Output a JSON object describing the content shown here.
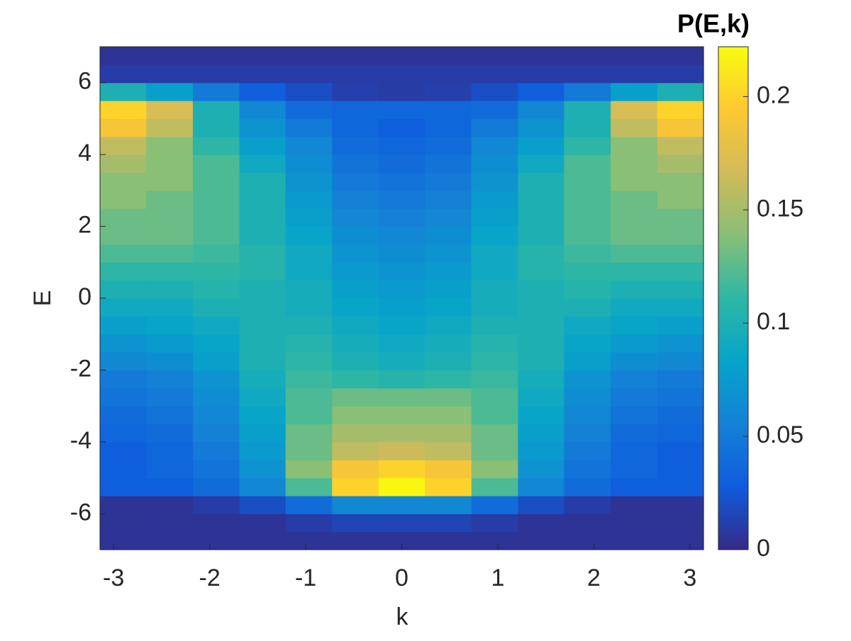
{
  "chart_data": {
    "type": "heatmap",
    "xlabel": "k",
    "ylabel": "E",
    "colorbar_title": "P(E,k)",
    "x": [
      -2.9,
      -2.42,
      -1.93,
      -1.45,
      -0.97,
      -0.48,
      0,
      0.48,
      0.97,
      1.45,
      1.93,
      2.42,
      2.9
    ],
    "y": [
      -6.75,
      -6.25,
      -5.75,
      -5.25,
      -4.75,
      -4.25,
      -3.75,
      -3.25,
      -2.75,
      -2.25,
      -1.75,
      -1.25,
      -0.75,
      -0.25,
      0.25,
      0.75,
      1.25,
      1.75,
      2.25,
      2.75,
      3.25,
      3.75,
      4.25,
      4.75,
      5.25,
      5.75,
      6.25,
      6.75
    ],
    "z": [
      [
        0.005,
        0.005,
        0.005,
        0.005,
        0.005,
        0.005,
        0.005,
        0.005,
        0.005,
        0.005,
        0.005,
        0.005,
        0.005
      ],
      [
        0.005,
        0.005,
        0.005,
        0.005,
        0.01,
        0.015,
        0.015,
        0.015,
        0.01,
        0.005,
        0.005,
        0.005,
        0.005
      ],
      [
        0.005,
        0.005,
        0.01,
        0.02,
        0.04,
        0.06,
        0.06,
        0.06,
        0.04,
        0.02,
        0.01,
        0.005,
        0.005
      ],
      [
        0.03,
        0.03,
        0.04,
        0.06,
        0.12,
        0.2,
        0.22,
        0.2,
        0.12,
        0.06,
        0.04,
        0.03,
        0.03
      ],
      [
        0.03,
        0.035,
        0.045,
        0.07,
        0.14,
        0.19,
        0.2,
        0.19,
        0.14,
        0.07,
        0.045,
        0.035,
        0.03
      ],
      [
        0.03,
        0.035,
        0.05,
        0.075,
        0.13,
        0.16,
        0.165,
        0.16,
        0.13,
        0.075,
        0.05,
        0.035,
        0.03
      ],
      [
        0.035,
        0.04,
        0.055,
        0.08,
        0.13,
        0.15,
        0.15,
        0.15,
        0.13,
        0.08,
        0.055,
        0.04,
        0.035
      ],
      [
        0.04,
        0.045,
        0.06,
        0.085,
        0.12,
        0.14,
        0.14,
        0.14,
        0.12,
        0.085,
        0.06,
        0.045,
        0.04
      ],
      [
        0.045,
        0.05,
        0.065,
        0.09,
        0.12,
        0.13,
        0.13,
        0.13,
        0.12,
        0.09,
        0.065,
        0.05,
        0.045
      ],
      [
        0.05,
        0.055,
        0.07,
        0.095,
        0.115,
        0.11,
        0.105,
        0.11,
        0.115,
        0.095,
        0.07,
        0.055,
        0.05
      ],
      [
        0.06,
        0.065,
        0.08,
        0.1,
        0.11,
        0.1,
        0.095,
        0.1,
        0.11,
        0.1,
        0.08,
        0.065,
        0.06
      ],
      [
        0.07,
        0.075,
        0.085,
        0.1,
        0.105,
        0.095,
        0.09,
        0.095,
        0.105,
        0.1,
        0.085,
        0.075,
        0.07
      ],
      [
        0.08,
        0.085,
        0.09,
        0.1,
        0.1,
        0.09,
        0.085,
        0.09,
        0.1,
        0.1,
        0.09,
        0.085,
        0.08
      ],
      [
        0.09,
        0.09,
        0.1,
        0.1,
        0.095,
        0.085,
        0.08,
        0.085,
        0.095,
        0.1,
        0.1,
        0.09,
        0.09
      ],
      [
        0.1,
        0.1,
        0.105,
        0.1,
        0.095,
        0.08,
        0.075,
        0.08,
        0.095,
        0.1,
        0.105,
        0.1,
        0.1
      ],
      [
        0.11,
        0.11,
        0.11,
        0.105,
        0.09,
        0.075,
        0.07,
        0.075,
        0.09,
        0.105,
        0.11,
        0.11,
        0.11
      ],
      [
        0.12,
        0.12,
        0.115,
        0.105,
        0.09,
        0.07,
        0.065,
        0.07,
        0.09,
        0.105,
        0.115,
        0.12,
        0.12
      ],
      [
        0.13,
        0.13,
        0.12,
        0.1,
        0.085,
        0.065,
        0.06,
        0.065,
        0.085,
        0.1,
        0.12,
        0.13,
        0.13
      ],
      [
        0.13,
        0.13,
        0.12,
        0.1,
        0.08,
        0.06,
        0.055,
        0.06,
        0.08,
        0.1,
        0.12,
        0.13,
        0.13
      ],
      [
        0.14,
        0.13,
        0.12,
        0.1,
        0.075,
        0.055,
        0.05,
        0.055,
        0.075,
        0.1,
        0.12,
        0.13,
        0.14
      ],
      [
        0.14,
        0.14,
        0.12,
        0.1,
        0.07,
        0.05,
        0.045,
        0.05,
        0.07,
        0.1,
        0.12,
        0.14,
        0.14
      ],
      [
        0.15,
        0.14,
        0.12,
        0.09,
        0.065,
        0.045,
        0.04,
        0.045,
        0.065,
        0.09,
        0.12,
        0.14,
        0.15
      ],
      [
        0.16,
        0.14,
        0.11,
        0.08,
        0.06,
        0.04,
        0.035,
        0.04,
        0.06,
        0.08,
        0.11,
        0.14,
        0.16
      ],
      [
        0.19,
        0.16,
        0.1,
        0.07,
        0.05,
        0.035,
        0.03,
        0.035,
        0.05,
        0.07,
        0.1,
        0.16,
        0.19
      ],
      [
        0.2,
        0.17,
        0.1,
        0.06,
        0.04,
        0.035,
        0.035,
        0.035,
        0.04,
        0.06,
        0.1,
        0.17,
        0.2
      ],
      [
        0.1,
        0.08,
        0.05,
        0.03,
        0.02,
        0.012,
        0.01,
        0.012,
        0.02,
        0.03,
        0.05,
        0.08,
        0.1
      ],
      [
        0.01,
        0.01,
        0.01,
        0.01,
        0.01,
        0.01,
        0.01,
        0.01,
        0.01,
        0.01,
        0.01,
        0.01,
        0.01
      ],
      [
        0.005,
        0.005,
        0.005,
        0.005,
        0.005,
        0.005,
        0.005,
        0.005,
        0.005,
        0.005,
        0.005,
        0.005,
        0.005
      ]
    ],
    "xlim": [
      -3.1416,
      3.1416
    ],
    "ylim": [
      -7,
      7
    ],
    "xticks": [
      -3,
      -2,
      -1,
      0,
      1,
      2,
      3
    ],
    "yticks": [
      -6,
      -4,
      -2,
      0,
      2,
      4,
      6
    ],
    "clim": [
      0,
      0.222
    ],
    "cticks": [
      0,
      0.05,
      0.1,
      0.15,
      0.2
    ],
    "colormap": [
      "#352a87",
      "#0f5cdd",
      "#1481d6",
      "#06a4ca",
      "#2eb7a4",
      "#87bf77",
      "#d1bb59",
      "#fec832",
      "#f9fb0e"
    ]
  }
}
